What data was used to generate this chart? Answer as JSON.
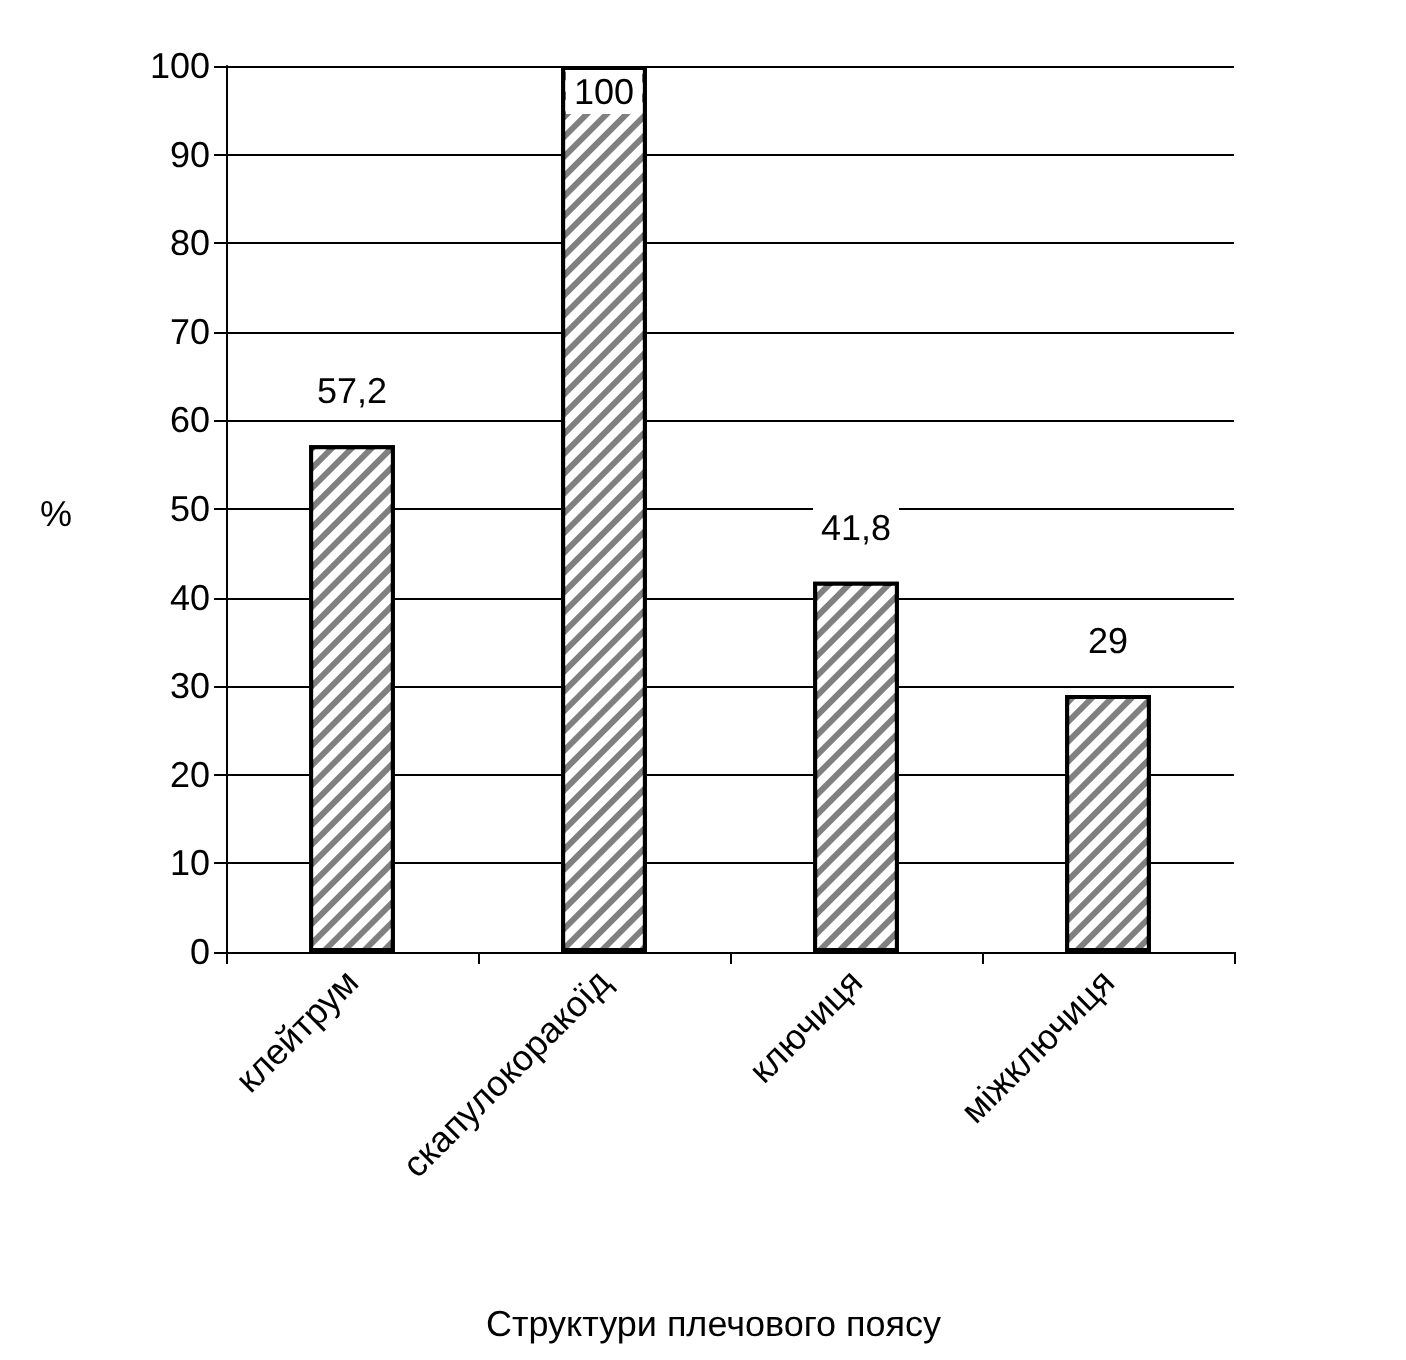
{
  "chart_data": {
    "type": "bar",
    "xlabel": "Структури плечового поясу",
    "ylabel": "%",
    "categories": [
      "клейтрум",
      "скапулокоракоїд",
      "ключиця",
      "міжключиця"
    ],
    "values": [
      57.2,
      100,
      41.8,
      29
    ],
    "value_labels": [
      "57,2",
      "100",
      "41,8",
      "29"
    ],
    "color": "#808080",
    "ylim": [
      0,
      100
    ],
    "yticks": [
      0,
      10,
      20,
      30,
      40,
      50,
      60,
      70,
      80,
      90,
      100
    ],
    "grid": "y"
  }
}
